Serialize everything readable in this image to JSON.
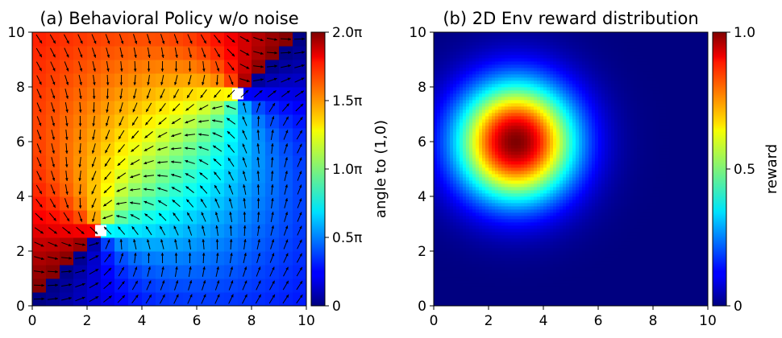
{
  "chart_data": [
    {
      "type": "heatmap",
      "title": "(a) Behavioral Policy w/o noise",
      "xlim": [
        0,
        10
      ],
      "ylim": [
        0,
        10
      ],
      "xticks": [
        "0",
        "2",
        "4",
        "6",
        "8",
        "10"
      ],
      "yticks": [
        "0",
        "2",
        "4",
        "6",
        "8",
        "10"
      ],
      "colormap": "jet",
      "overlay": "quiver arrows showing policy direction on a 20x20 grid",
      "undefined_points": [
        [
          2.5,
          2.75
        ],
        [
          7.5,
          7.75
        ]
      ],
      "colorbar": {
        "label": "angle to (1,0)",
        "range": [
          0,
          6.2832
        ],
        "ticks": [
          "0",
          "0.5π",
          "1.0π",
          "1.5π",
          "2.0π"
        ]
      }
    },
    {
      "type": "heatmap",
      "title": "(b) 2D Env reward distribution",
      "xlim": [
        0,
        10
      ],
      "ylim": [
        0,
        10
      ],
      "xticks": [
        "0",
        "2",
        "4",
        "6",
        "8",
        "10"
      ],
      "yticks": [
        "0",
        "2",
        "4",
        "6",
        "8",
        "10"
      ],
      "colormap": "jet",
      "peak": {
        "x": 3,
        "y": 6,
        "value": 1.0
      },
      "spread_sigma": 1.5,
      "colorbar": {
        "label": "reward",
        "range": [
          0,
          1
        ],
        "ticks": [
          "0",
          "0.5",
          "1.0"
        ]
      }
    }
  ]
}
